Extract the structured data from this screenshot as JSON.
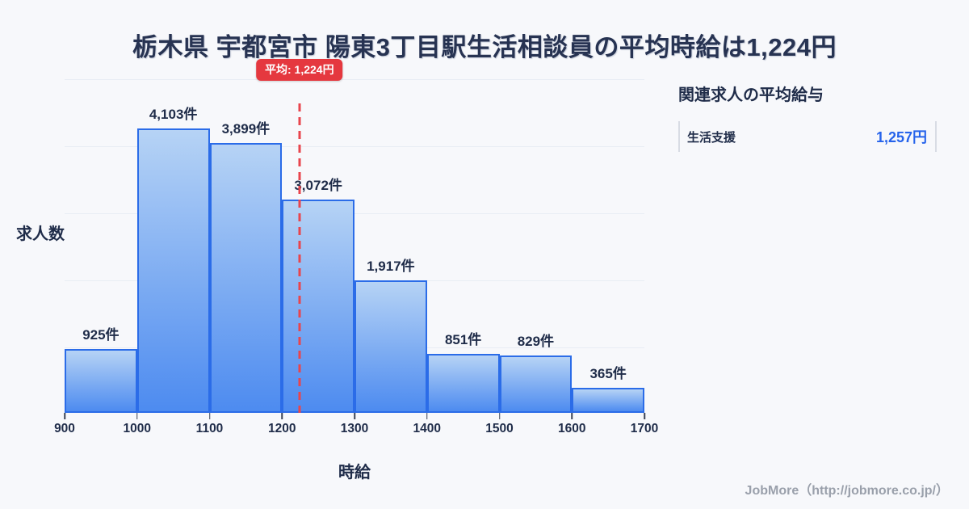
{
  "title": "栃木県 宇都宮市 陽東3丁目駅生活相談員の平均時給は1,224円",
  "chart_data": {
    "type": "bar",
    "subtype": "histogram",
    "title": "栃木県 宇都宮市 陽東3丁目駅生活相談員の平均時給は1,224円",
    "xlabel": "時給",
    "ylabel": "求人数",
    "xlim": [
      900,
      1700
    ],
    "x_tick_labels": [
      "900",
      "1000",
      "1100",
      "1200",
      "1300",
      "1400",
      "1500",
      "1600",
      "1700"
    ],
    "bin_edges": [
      900,
      1000,
      1100,
      1200,
      1300,
      1400,
      1500,
      1600,
      1700
    ],
    "values": [
      925,
      4103,
      3899,
      3072,
      1917,
      851,
      829,
      365
    ],
    "bar_labels": [
      "925件",
      "4,103件",
      "3,899件",
      "3,072件",
      "1,917件",
      "851件",
      "829件",
      "365件"
    ],
    "mean": {
      "value": 1224,
      "label": "平均: 1,224円"
    },
    "grid": "horizontal, 5 light lines, no y tick labels",
    "legend": "none",
    "colors": {
      "bar_fill_top": "#b6d3f5",
      "bar_fill_bottom": "#4d8bf0",
      "bar_border": "#2b6ce8",
      "mean_line": "#e8454d",
      "mean_badge_bg": "#e5383f",
      "text": "#1f2c49",
      "accent_blue": "#2563eb",
      "background": "#f7f8fb"
    }
  },
  "side_panel": {
    "heading": "関連求人の平均給与",
    "rows": [
      {
        "label": "生活支援",
        "value": "1,257円"
      }
    ]
  },
  "footer": {
    "credit": "JobMore（http://jobmore.co.jp/）"
  }
}
